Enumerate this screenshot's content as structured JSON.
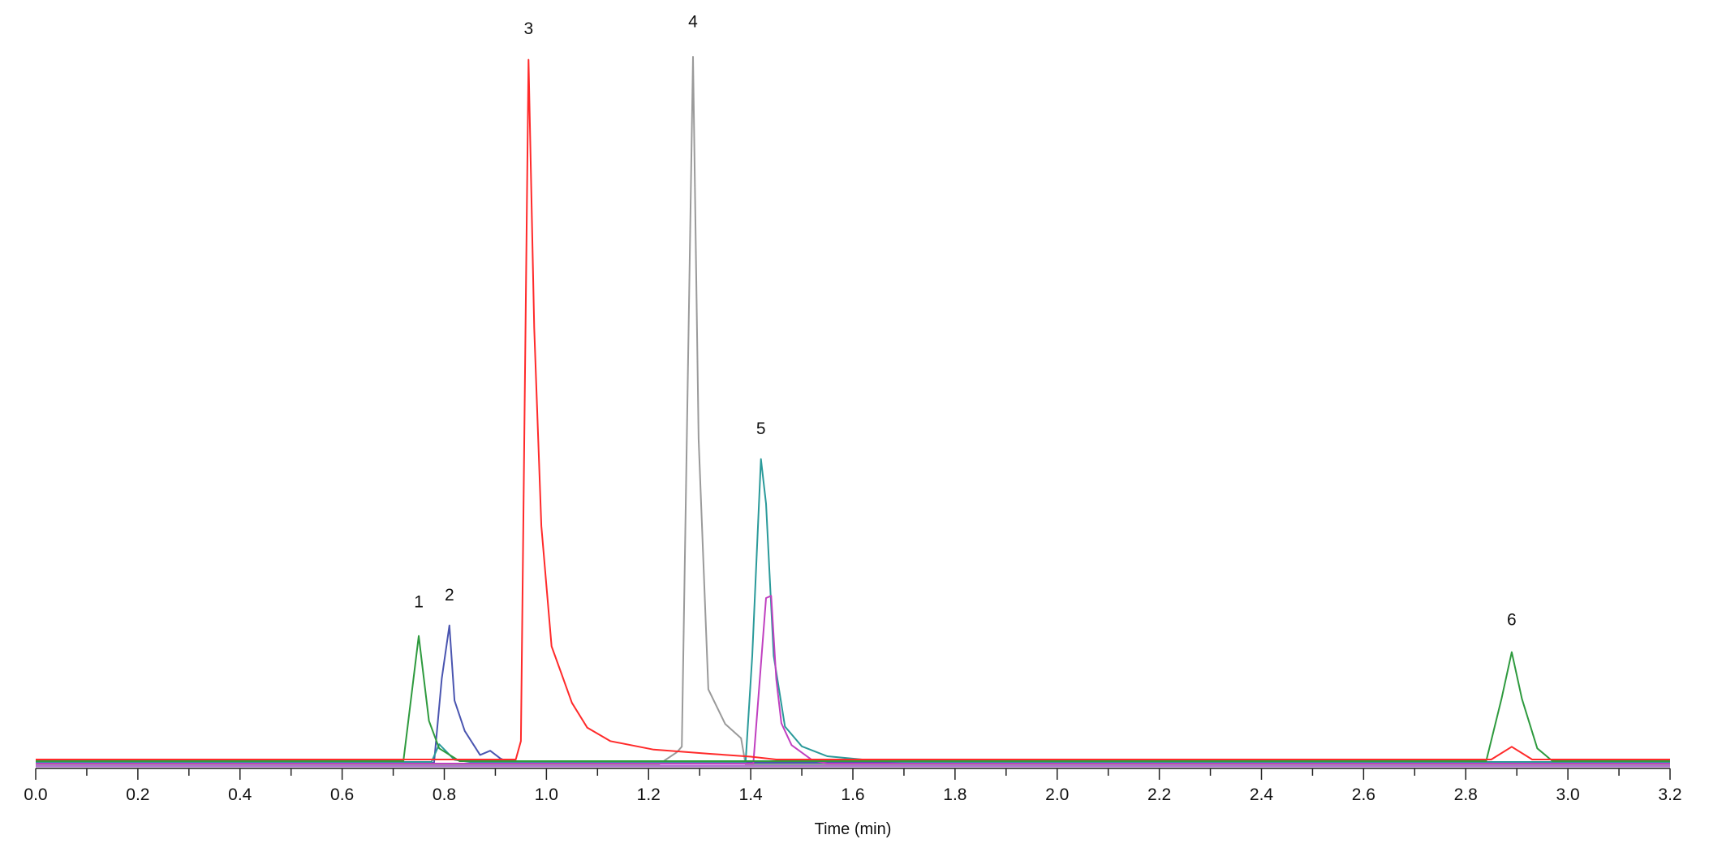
{
  "chart_data": {
    "type": "line",
    "title": "",
    "xlabel": "Time (min)",
    "ylabel": "",
    "xlim": [
      0.0,
      3.2
    ],
    "ylim": [
      0,
      100
    ],
    "x_ticks": [
      "0.0",
      "0.2",
      "0.4",
      "0.6",
      "0.8",
      "1.0",
      "1.2",
      "1.4",
      "1.6",
      "1.8",
      "2.0",
      "2.2",
      "2.4",
      "2.6",
      "2.8",
      "3.0",
      "3.2"
    ],
    "x_minor_tick_step": 0.1,
    "y_axis_visible": false,
    "grid": false,
    "legend": "none",
    "series": [
      {
        "color": "#9a9a9a",
        "points": [
          [
            0,
            0
          ],
          [
            1.22,
            0
          ],
          [
            1.255,
            1.7
          ],
          [
            1.265,
            2.5
          ],
          [
            1.287,
            100
          ],
          [
            1.298,
            46
          ],
          [
            1.317,
            10.6
          ],
          [
            1.35,
            5.7
          ],
          [
            1.381,
            3.7
          ],
          [
            1.39,
            0
          ],
          [
            3.2,
            0
          ]
        ]
      },
      {
        "color": "#4a55b0",
        "points": [
          [
            0,
            0
          ],
          [
            0.78,
            0
          ],
          [
            0.795,
            11.9
          ],
          [
            0.81,
            19.4
          ],
          [
            0.82,
            8.8
          ],
          [
            0.84,
            4.5
          ],
          [
            0.87,
            1.1
          ],
          [
            0.89,
            1.7
          ],
          [
            0.91,
            0.6
          ],
          [
            0.93,
            0
          ],
          [
            3.2,
            0
          ]
        ]
      },
      {
        "color": "#2a9a9a",
        "points": [
          [
            0,
            0
          ],
          [
            0.775,
            0
          ],
          [
            0.79,
            2.5
          ],
          [
            0.82,
            0.3
          ],
          [
            0.85,
            0
          ],
          [
            1.39,
            0
          ],
          [
            1.403,
            15
          ],
          [
            1.42,
            42.8
          ],
          [
            1.43,
            36.5
          ],
          [
            1.445,
            15
          ],
          [
            1.467,
            5
          ],
          [
            1.5,
            2.2
          ],
          [
            1.55,
            0.8
          ],
          [
            1.64,
            0.2
          ],
          [
            1.7,
            0
          ],
          [
            3.2,
            0
          ]
        ]
      },
      {
        "color": "#c040c0",
        "points": [
          [
            0,
            0
          ],
          [
            1.405,
            0
          ],
          [
            1.43,
            23.4
          ],
          [
            1.44,
            23.7
          ],
          [
            1.45,
            11.9
          ],
          [
            1.46,
            5.7
          ],
          [
            1.48,
            2.6
          ],
          [
            1.52,
            0.5
          ],
          [
            1.55,
            0
          ],
          [
            3.2,
            0
          ]
        ]
      },
      {
        "color": "#2e9a3e",
        "points": [
          [
            0,
            0
          ],
          [
            0.72,
            0
          ],
          [
            0.75,
            17.7
          ],
          [
            0.77,
            5.7
          ],
          [
            0.79,
            1.8
          ],
          [
            0.83,
            0
          ],
          [
            2.84,
            0
          ],
          [
            2.87,
            8.8
          ],
          [
            2.89,
            15.4
          ],
          [
            2.91,
            8.8
          ],
          [
            2.94,
            1.8
          ],
          [
            2.97,
            0
          ],
          [
            3.2,
            0
          ]
        ]
      },
      {
        "color": "#ff2a2a",
        "points": [
          [
            0,
            0
          ],
          [
            0.94,
            0
          ],
          [
            0.95,
            2.6
          ],
          [
            0.965,
            98.9
          ],
          [
            0.976,
            61
          ],
          [
            0.99,
            33
          ],
          [
            1.01,
            16
          ],
          [
            1.03,
            12
          ],
          [
            1.05,
            8
          ],
          [
            1.08,
            4.5
          ],
          [
            1.125,
            2.6
          ],
          [
            1.21,
            1.4
          ],
          [
            1.32,
            0.8
          ],
          [
            1.4,
            0.4
          ],
          [
            1.45,
            0
          ],
          [
            2.85,
            0
          ],
          [
            2.89,
            1.8
          ],
          [
            2.93,
            0
          ],
          [
            3.2,
            0
          ]
        ]
      }
    ],
    "annotations": [
      {
        "text": "1",
        "x": 0.75,
        "y": 21.5
      },
      {
        "text": "2",
        "x": 0.81,
        "y": 22.5
      },
      {
        "text": "3",
        "x": 0.965,
        "y": 102.5
      },
      {
        "text": "4",
        "x": 1.287,
        "y": 103.5
      },
      {
        "text": "5",
        "x": 1.42,
        "y": 46
      },
      {
        "text": "6",
        "x": 2.89,
        "y": 19
      }
    ]
  }
}
